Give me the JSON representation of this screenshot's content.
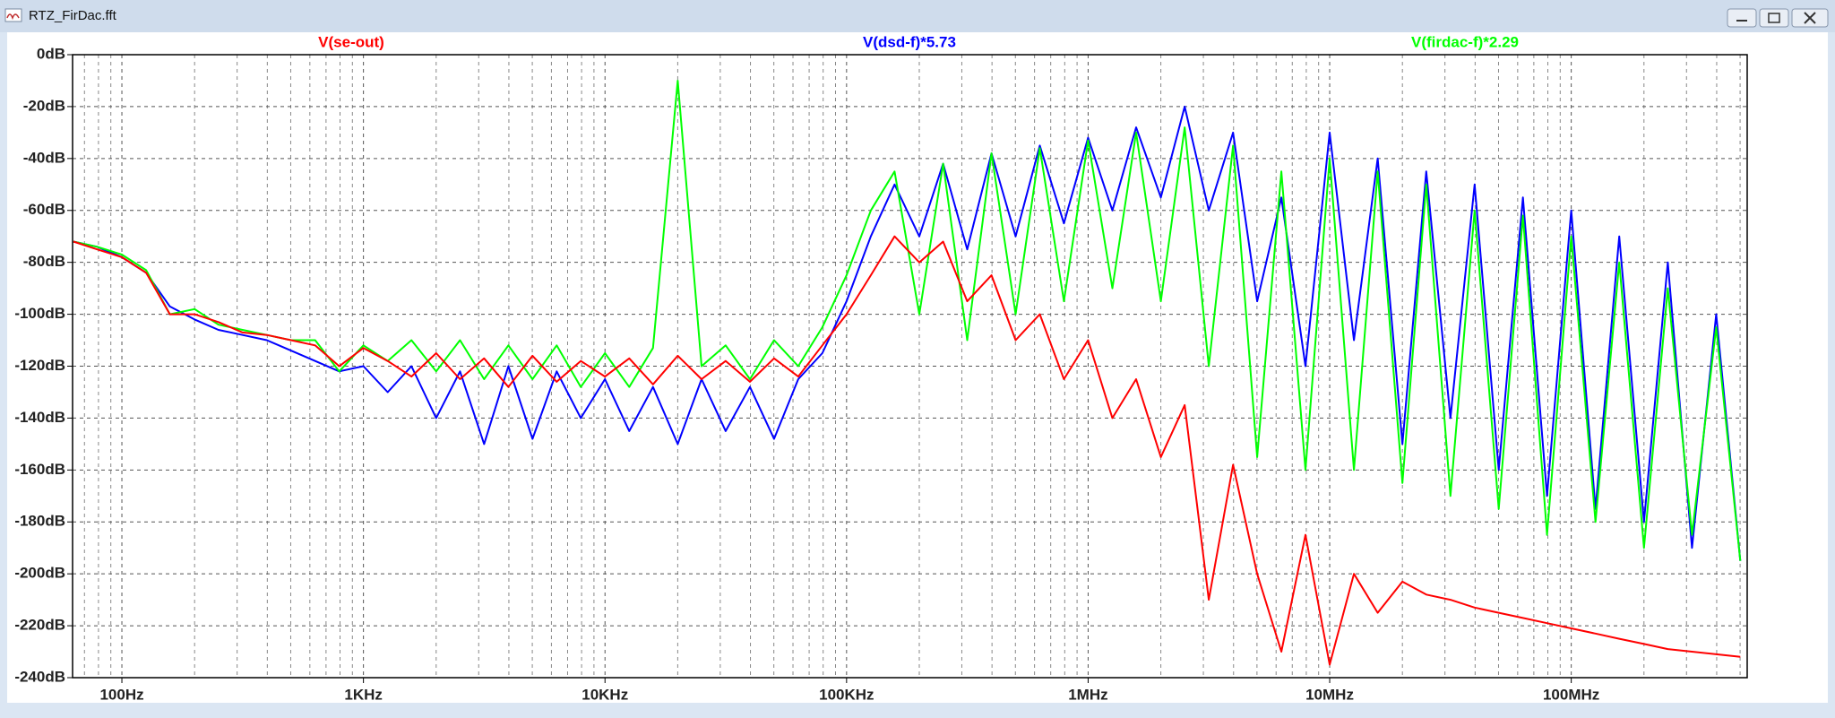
{
  "window_title": "RTZ_FirDac.fft",
  "chart_data": {
    "type": "line",
    "xscale": "log",
    "grid": true,
    "minor_grid": true,
    "x": [
      63,
      79,
      100,
      126,
      158,
      200,
      251,
      316,
      398,
      501,
      631,
      794,
      1000,
      1260,
      1580,
      2000,
      2510,
      3160,
      3980,
      5010,
      6310,
      7940,
      10000,
      12600,
      15800,
      20000,
      25100,
      31600,
      39800,
      50100,
      63100,
      79400,
      100000,
      126000,
      158000,
      200000,
      251000,
      316000,
      398000,
      501000,
      631000,
      794000,
      1000000,
      1260000,
      1580000,
      2000000,
      2510000,
      3160000,
      3980000,
      5010000,
      6310000,
      7940000,
      10000000,
      12600000,
      15800000,
      20000000,
      25100000,
      31600000,
      39800000,
      50100000,
      63100000,
      79400000,
      100000000,
      126000000,
      158000000,
      200000000,
      251000000,
      316000000,
      398000000,
      501000000
    ],
    "series": [
      {
        "name": "V(dsd-f)*5.73",
        "color": "#0000ff",
        "values": [
          -72,
          -74,
          -78,
          -84,
          -97,
          -102,
          -106,
          -108,
          -110,
          -114,
          -118,
          -122,
          -120,
          -130,
          -120,
          -140,
          -122,
          -150,
          -120,
          -148,
          -122,
          -140,
          -125,
          -145,
          -128,
          -150,
          -125,
          -145,
          -128,
          -148,
          -125,
          -115,
          -95,
          -70,
          -50,
          -70,
          -42,
          -75,
          -38,
          -70,
          -35,
          -65,
          -32,
          -60,
          -28,
          -55,
          -20,
          -60,
          -30,
          -95,
          -55,
          -120,
          -30,
          -110,
          -40,
          -150,
          -45,
          -140,
          -50,
          -160,
          -55,
          -170,
          -60,
          -175,
          -70,
          -180,
          -80,
          -190,
          -100,
          -195
        ]
      },
      {
        "name": "V(firdac-f)*2.29",
        "color": "#00ff00",
        "values": [
          -72,
          -74,
          -77,
          -83,
          -100,
          -98,
          -104,
          -106,
          -108,
          -110,
          -110,
          -122,
          -112,
          -118,
          -110,
          -122,
          -110,
          -125,
          -112,
          -125,
          -112,
          -128,
          -115,
          -128,
          -113,
          -10,
          -120,
          -112,
          -125,
          -110,
          -120,
          -105,
          -85,
          -60,
          -45,
          -100,
          -42,
          -110,
          -38,
          -100,
          -36,
          -95,
          -33,
          -90,
          -30,
          -95,
          -28,
          -120,
          -35,
          -155,
          -45,
          -160,
          -40,
          -160,
          -45,
          -165,
          -50,
          -170,
          -60,
          -175,
          -62,
          -185,
          -70,
          -180,
          -80,
          -190,
          -90,
          -185,
          -105,
          -195
        ]
      },
      {
        "name": "V(se-out)",
        "color": "#ff0000",
        "values": [
          -72,
          -75,
          -78,
          -84,
          -100,
          -100,
          -103,
          -107,
          -108,
          -110,
          -112,
          -120,
          -113,
          -118,
          -124,
          -115,
          -125,
          -117,
          -128,
          -116,
          -126,
          -118,
          -124,
          -117,
          -127,
          -116,
          -125,
          -118,
          -126,
          -117,
          -124,
          -112,
          -100,
          -85,
          -70,
          -80,
          -72,
          -95,
          -85,
          -110,
          -100,
          -125,
          -110,
          -140,
          -125,
          -155,
          -135,
          -210,
          -158,
          -200,
          -230,
          -185,
          -235,
          -200,
          -215,
          -203,
          -208,
          -210,
          -213,
          -215,
          -217,
          -219,
          -221,
          -223,
          -225,
          -227,
          -229,
          -230,
          -231,
          -232
        ]
      }
    ],
    "xlim": [
      62.5,
      535000000
    ],
    "ylim": [
      -240,
      0
    ],
    "xticks": [
      {
        "value": 100,
        "label": "100Hz"
      },
      {
        "value": 1000,
        "label": "1KHz"
      },
      {
        "value": 10000,
        "label": "10KHz"
      },
      {
        "value": 100000,
        "label": "100KHz"
      },
      {
        "value": 1000000,
        "label": "1MHz"
      },
      {
        "value": 10000000,
        "label": "10MHz"
      },
      {
        "value": 100000000,
        "label": "100MHz"
      }
    ],
    "yticks": [
      {
        "value": 0,
        "label": "0dB"
      },
      {
        "value": -20,
        "label": "-20dB"
      },
      {
        "value": -40,
        "label": "-40dB"
      },
      {
        "value": -60,
        "label": "-60dB"
      },
      {
        "value": -80,
        "label": "-80dB"
      },
      {
        "value": -100,
        "label": "-100dB"
      },
      {
        "value": -120,
        "label": "-120dB"
      },
      {
        "value": -140,
        "label": "-140dB"
      },
      {
        "value": -160,
        "label": "-160dB"
      },
      {
        "value": -180,
        "label": "-180dB"
      },
      {
        "value": -200,
        "label": "-200dB"
      },
      {
        "value": -220,
        "label": "-220dB"
      },
      {
        "value": -240,
        "label": "-240dB"
      }
    ]
  }
}
